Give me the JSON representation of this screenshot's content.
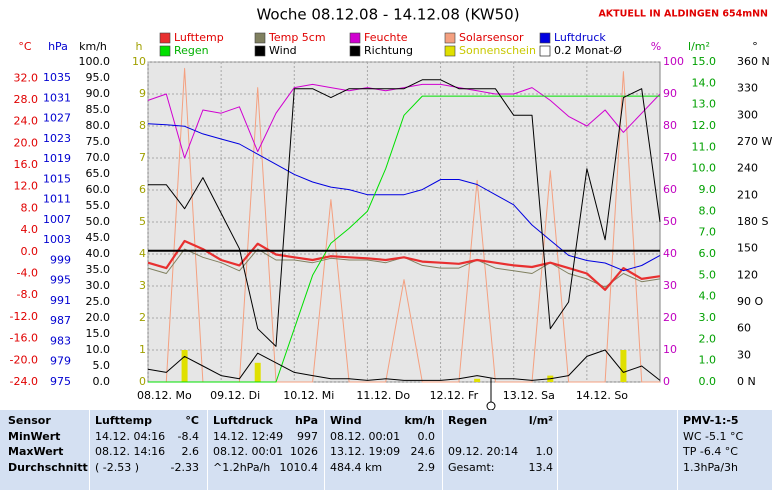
{
  "chart_data": {
    "type": "line",
    "title": "Woche 08.12.08 - 14.12.08 (KW50)",
    "note": "AKTUELL IN ALDINGEN 654mNN",
    "x": [
      0,
      6,
      12,
      18,
      24,
      30,
      36,
      42,
      48,
      54,
      60,
      66,
      72,
      78,
      84,
      90,
      96,
      102,
      108,
      114,
      120,
      126,
      132,
      138,
      144,
      150,
      156,
      162,
      168
    ],
    "xlim": [
      0,
      168
    ],
    "xticks": [
      {
        "value": 0,
        "label": "08.12. Mo"
      },
      {
        "value": 24,
        "label": "09.12. Di"
      },
      {
        "value": 48,
        "label": "10.12. Mi"
      },
      {
        "value": 72,
        "label": "11.12. Do"
      },
      {
        "value": 96,
        "label": "12.12. Fr"
      },
      {
        "value": 120,
        "label": "13.12. Sa"
      },
      {
        "value": 144,
        "label": "14.12. So"
      }
    ],
    "grid": true,
    "y_axes": {
      "y": {
        "label": "°C",
        "color": "#e00000",
        "lim": [
          -24,
          35
        ],
        "ticks": [
          {
            "value": 32,
            "label": "32.0"
          },
          {
            "value": 28,
            "label": "28.0"
          },
          {
            "value": 24,
            "label": "24.0"
          },
          {
            "value": 20,
            "label": "20.0"
          },
          {
            "value": 16,
            "label": "16.0"
          },
          {
            "value": 12,
            "label": "12.0"
          },
          {
            "value": 8,
            "label": "8.0"
          },
          {
            "value": 4,
            "label": "4.0"
          },
          {
            "value": 0,
            "label": "0.0"
          },
          {
            "value": -4,
            "label": "-4.0"
          },
          {
            "value": -8,
            "label": "-8.0"
          },
          {
            "value": -12,
            "label": "-12.0"
          },
          {
            "value": -16,
            "label": "-16.0"
          },
          {
            "value": -20,
            "label": "-20.0"
          },
          {
            "value": -24,
            "label": "-24.0"
          }
        ]
      },
      "y2": {
        "label": "hPa",
        "color": "#0000d0",
        "lim": [
          975,
          1038.2
        ],
        "ticks": [
          1035,
          1031,
          1027,
          1023,
          1019,
          1015,
          1011,
          1007,
          1003,
          999,
          995,
          991,
          987,
          983,
          979,
          975
        ]
      },
      "y3": {
        "label": "km/h",
        "color": "#000000",
        "lim": [
          0,
          100
        ],
        "ticks": [
          {
            "value": 100,
            "label": "100.0"
          },
          {
            "value": 95,
            "label": "95.0"
          },
          {
            "value": 90,
            "label": "90.0"
          },
          {
            "value": 85,
            "label": "85.0"
          },
          {
            "value": 80,
            "label": "80.0"
          },
          {
            "value": 75,
            "label": "75.0"
          },
          {
            "value": 70,
            "label": "70.0"
          },
          {
            "value": 65,
            "label": "65.0"
          },
          {
            "value": 60,
            "label": "60.0"
          },
          {
            "value": 55,
            "label": "55.0"
          },
          {
            "value": 50,
            "label": "50.0"
          },
          {
            "value": 45,
            "label": "45.0"
          },
          {
            "value": 40,
            "label": "40.0"
          },
          {
            "value": 35,
            "label": "35.0"
          },
          {
            "value": 30,
            "label": "30.0"
          },
          {
            "value": 25,
            "label": "25.0"
          },
          {
            "value": 20,
            "label": "20.0"
          },
          {
            "value": 15,
            "label": "15.0"
          },
          {
            "value": 10,
            "label": "10.0"
          },
          {
            "value": 5,
            "label": "5.0"
          },
          {
            "value": 0,
            "label": "0.0"
          }
        ]
      },
      "y4": {
        "label": "h",
        "color": "#a0a000",
        "lim": [
          0,
          10
        ],
        "ticks": [
          10,
          9,
          8,
          7,
          6,
          5,
          4,
          3,
          2,
          1,
          0
        ]
      },
      "y5": {
        "label": "%",
        "color": "#c000c0",
        "lim": [
          0,
          100
        ],
        "ticks": [
          100,
          90,
          80,
          70,
          60,
          50,
          40,
          30,
          20,
          10,
          0
        ]
      },
      "y6": {
        "label": "l/m²",
        "color": "#00a000",
        "lim": [
          0,
          15
        ],
        "ticks": [
          {
            "value": 15,
            "label": "15.0"
          },
          {
            "value": 14,
            "label": "14.0"
          },
          {
            "value": 13,
            "label": "13.0"
          },
          {
            "value": 12,
            "label": "12.0"
          },
          {
            "value": 11,
            "label": "11.0"
          },
          {
            "value": 10,
            "label": "10.0"
          },
          {
            "value": 9,
            "label": "9.0"
          },
          {
            "value": 8,
            "label": "8.0"
          },
          {
            "value": 7,
            "label": "7.0"
          },
          {
            "value": 6,
            "label": "6.0"
          },
          {
            "value": 5,
            "label": "5.0"
          },
          {
            "value": 4,
            "label": "4.0"
          },
          {
            "value": 3,
            "label": "3.0"
          },
          {
            "value": 2,
            "label": "2.0"
          },
          {
            "value": 1,
            "label": "1.0"
          },
          {
            "value": 0,
            "label": "0.0"
          }
        ]
      },
      "y7": {
        "label": "°",
        "color": "#000000",
        "lim": [
          0,
          360
        ],
        "ticks": [
          {
            "value": 360,
            "label": "360 N"
          },
          330,
          300,
          {
            "value": 270,
            "label": "270 W"
          },
          240,
          210,
          {
            "value": 180,
            "label": "180 S"
          },
          150,
          120,
          {
            "value": 90,
            "label": "90 O"
          },
          60,
          30,
          {
            "value": 0,
            "label": "0 N"
          }
        ]
      }
    },
    "series": [
      {
        "name": "Lufttemp",
        "color": "#e83030",
        "label_color": "#e00000",
        "axis": "y",
        "width": 2.2,
        "values": [
          -2.0,
          -3.0,
          2.0,
          0.5,
          -1.5,
          -2.5,
          1.5,
          -0.5,
          -1.0,
          -1.5,
          -0.8,
          -1.0,
          -1.2,
          -1.5,
          -1.0,
          -1.8,
          -2.0,
          -2.2,
          -1.5,
          -2.0,
          -2.5,
          -2.8,
          -2.0,
          -3.0,
          -4.0,
          -7.0,
          -3.0,
          -5.0,
          -4.5
        ]
      },
      {
        "name": "Temp 5cm",
        "color": "#808060",
        "label_color": "#e00000",
        "axis": "y",
        "width": 1,
        "values": [
          -3.0,
          -4.0,
          0.5,
          -1.0,
          -2.0,
          -3.5,
          0.5,
          -1.5,
          -1.5,
          -2.0,
          -1.2,
          -1.5,
          -1.5,
          -2.0,
          -1.0,
          -2.5,
          -3.0,
          -3.0,
          -1.5,
          -3.0,
          -3.5,
          -4.0,
          -2.0,
          -4.0,
          -5.0,
          -6.5,
          -4.0,
          -5.5,
          -5.0
        ]
      },
      {
        "name": "Feuchte",
        "color": "#d000d0",
        "label_color": "#e00000",
        "axis": "y5",
        "width": 1,
        "values": [
          88,
          90,
          70,
          85,
          84,
          86,
          72,
          84,
          92,
          93,
          92,
          91,
          92,
          91,
          92,
          93,
          93,
          92,
          91,
          90,
          90,
          92,
          88,
          83,
          80,
          85,
          78,
          84,
          90
        ]
      },
      {
        "name": "Solarsensor",
        "color": "#f4a080",
        "label_color": "#e00000",
        "axis": "y5",
        "width": 1,
        "values": [
          0,
          0,
          98,
          0,
          0,
          0,
          92,
          0,
          0,
          0,
          57,
          0,
          0,
          0,
          32,
          0,
          0,
          0,
          63,
          0,
          0,
          0,
          66,
          0,
          0,
          0,
          97,
          0,
          0
        ]
      },
      {
        "name": "Luftdruck",
        "color": "#0000e0",
        "label_color": "#0000d0",
        "axis": "y2",
        "width": 1,
        "values": [
          1026,
          1025.8,
          1025.5,
          1024,
          1023,
          1022,
          1020,
          1018,
          1016,
          1014.5,
          1013.5,
          1013,
          1012,
          1012,
          1012,
          1013,
          1015,
          1015,
          1014,
          1012,
          1010,
          1006,
          1003,
          1000,
          999,
          998.5,
          997,
          998,
          1000
        ]
      },
      {
        "name": "Regen",
        "color": "#00e000",
        "label_color": "#00b000",
        "axis": "y6",
        "width": 1,
        "values": [
          0,
          0,
          0,
          0,
          0,
          0,
          0,
          0,
          2.5,
          5,
          6.5,
          7.2,
          8,
          10,
          12.5,
          13.4,
          13.4,
          13.4,
          13.4,
          13.4,
          13.4,
          13.4,
          13.4,
          13.4,
          13.4,
          13.4,
          13.4,
          13.4,
          13.4
        ]
      },
      {
        "name": "Wind",
        "color": "#000000",
        "label_color": "#000000",
        "axis": "y3",
        "width": 1,
        "values": [
          4,
          3,
          8,
          5,
          2,
          1,
          9,
          6,
          3,
          2,
          1,
          1,
          0.5,
          1,
          0.5,
          0.5,
          0.5,
          1,
          2,
          1,
          1,
          0.5,
          1,
          2,
          8,
          10,
          3,
          5,
          0.5
        ]
      },
      {
        "name": "Richtung",
        "color": "#000000",
        "label_color": "#000000",
        "axis": "y7",
        "width": 1,
        "values": [
          222,
          222,
          195,
          230,
          190,
          150,
          60,
          40,
          330,
          330,
          320,
          330,
          330,
          330,
          330,
          340,
          340,
          330,
          330,
          330,
          300,
          300,
          60,
          90,
          240,
          160,
          320,
          330,
          180
        ]
      },
      {
        "name": "Sonnenschein",
        "color": "#e0e000",
        "label_color": "#c8c800",
        "axis": "y4",
        "type": "bar",
        "values": [
          0,
          0,
          1.0,
          0,
          0,
          0,
          0.6,
          0,
          0,
          0,
          0,
          0,
          0,
          0,
          0,
          0,
          0,
          0,
          0.1,
          0,
          0,
          0,
          0.2,
          0,
          0,
          0,
          1.0,
          0,
          0
        ]
      },
      {
        "name": "0.2 Monat-Ø",
        "color": "#000000",
        "label_color": "#000000",
        "axis": "y",
        "type": "hline",
        "value": 0.2
      }
    ]
  },
  "table": {
    "header": {
      "sensor": "Sensor",
      "lufttemp": [
        "Lufttemp",
        "°C"
      ],
      "luftdruck": [
        "Luftdruck",
        "hPa"
      ],
      "wind": [
        "Wind",
        "km/h"
      ],
      "regen": [
        "Regen",
        "l/m²"
      ],
      "pmv": "PMV-1:-5"
    },
    "rows": [
      {
        "sensor": "MinWert",
        "lufttemp": [
          "14.12. 04:16",
          "-8.4"
        ],
        "luftdruck": [
          "14.12. 12:49",
          "997"
        ],
        "wind": [
          "08.12. 00:01",
          "0.0"
        ],
        "pmv": "WC -5.1 °C"
      },
      {
        "sensor": "MaxWert",
        "lufttemp": [
          "08.12. 14:16",
          "2.6"
        ],
        "luftdruck": [
          "08.12. 00:01",
          "1026"
        ],
        "wind": [
          "13.12. 19:09",
          "24.6"
        ],
        "regen": [
          "09.12. 20:14",
          "1.0"
        ],
        "pmv": "TP -6.4 °C"
      },
      {
        "sensor": "Durchschnitt",
        "lufttemp": [
          "( -2.53 )",
          "-2.33"
        ],
        "luftdruck": [
          "^1.2hPa/h",
          "1010.4"
        ],
        "wind": [
          "484.4 km",
          "2.9"
        ],
        "regen": [
          "Gesamt:",
          "13.4"
        ],
        "pmv": "1.3hPa/3h"
      }
    ]
  }
}
